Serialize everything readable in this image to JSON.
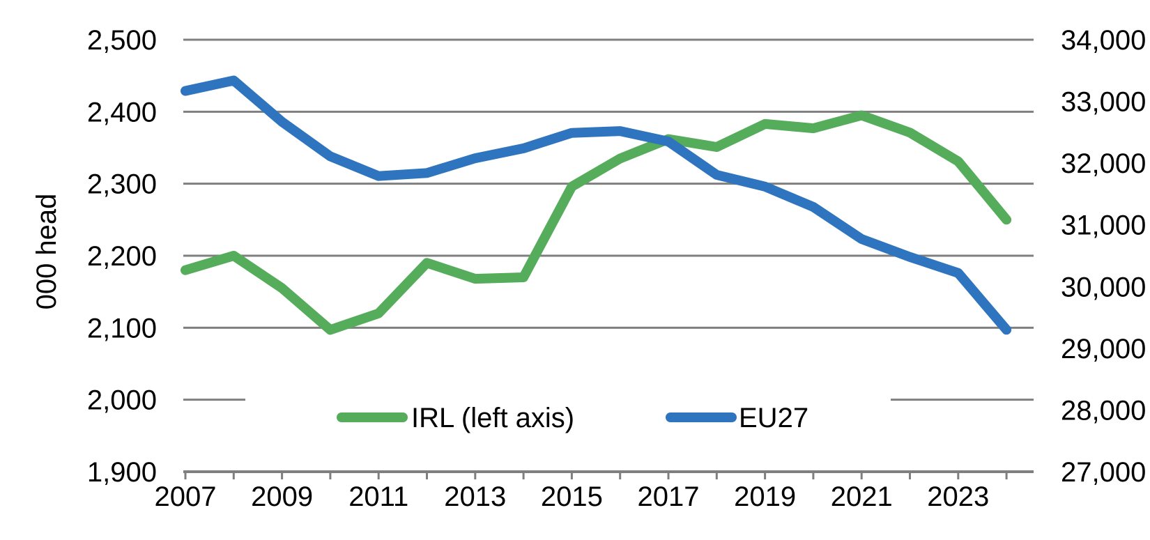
{
  "chart_data": {
    "type": "line",
    "title": "",
    "left_axis": {
      "label": "000 head",
      "min": 1900,
      "max": 2500,
      "tick_values": [
        2500,
        2400,
        2300,
        2200,
        2100,
        2000,
        1900
      ],
      "tick_labels": [
        "2,500",
        "2,400",
        "2,300",
        "2,200",
        "2,100",
        "2,000",
        "1,900"
      ]
    },
    "right_axis": {
      "min": 27000,
      "max": 34000,
      "tick_values": [
        34000,
        33000,
        32000,
        31000,
        30000,
        29000,
        28000,
        27000
      ],
      "tick_labels": [
        "34,000",
        "33,000",
        "32,000",
        "31,000",
        "30,000",
        "29,000",
        "28,000",
        "27,000"
      ]
    },
    "x": [
      2007,
      2008,
      2009,
      2010,
      2011,
      2012,
      2013,
      2014,
      2015,
      2016,
      2017,
      2018,
      2019,
      2020,
      2021,
      2022,
      2023,
      2024
    ],
    "x_axis": {
      "tick_label_years": [
        2007,
        2009,
        2011,
        2013,
        2015,
        2017,
        2019,
        2021,
        2023
      ],
      "tick_labels": [
        "2007",
        "2009",
        "2011",
        "2013",
        "2015",
        "2017",
        "2019",
        "2021",
        "2023"
      ]
    },
    "series": [
      {
        "name": "IRL (left axis)",
        "slug": "irl",
        "axis": "left",
        "color": "#55AD5B",
        "values": [
          2180,
          2200,
          2155,
          2097,
          2120,
          2190,
          2168,
          2170,
          2296,
          2335,
          2362,
          2351,
          2383,
          2377,
          2395,
          2371,
          2331,
          2250
        ]
      },
      {
        "name": "EU27",
        "slug": "eu27",
        "axis": "right",
        "color": "#2E74BE",
        "values": [
          33170,
          33340,
          32670,
          32110,
          31790,
          31840,
          32080,
          32240,
          32490,
          32520,
          32350,
          31810,
          31620,
          31290,
          30770,
          30480,
          30220,
          29300
        ]
      }
    ],
    "legend": [
      {
        "label": "IRL (left axis)",
        "series": 0
      },
      {
        "label": "EU27",
        "series": 1
      }
    ],
    "grid_color": "#7F7F7F",
    "text_color": "#000000",
    "background": "#FFFFFF"
  }
}
